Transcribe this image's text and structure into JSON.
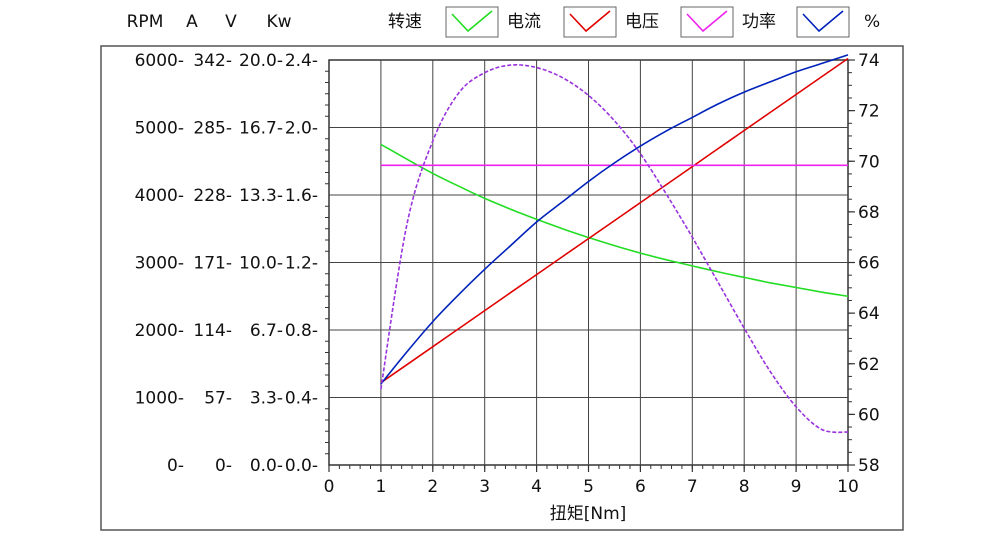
{
  "chart_data": {
    "type": "line",
    "xlabel": "扭矩[Nm]",
    "x_range": [
      0,
      10
    ],
    "x_ticks": [
      0,
      1,
      2,
      3,
      4,
      5,
      6,
      7,
      8,
      9,
      10
    ],
    "x": [
      1,
      1.5,
      2,
      2.5,
      3,
      3.5,
      4,
      4.5,
      5,
      5.5,
      6,
      6.5,
      7,
      7.5,
      8,
      8.5,
      9,
      9.5,
      10
    ],
    "left_axes": [
      {
        "unit": "RPM",
        "range": [
          0,
          6000
        ],
        "ticks": [
          "0-",
          "1000-",
          "2000-",
          "3000-",
          "4000-",
          "5000-",
          "6000-"
        ]
      },
      {
        "unit": "A",
        "range": [
          0,
          342
        ],
        "ticks": [
          "0-",
          "57-",
          "114-",
          "171-",
          "228-",
          "285-",
          "342-"
        ]
      },
      {
        "unit": "V",
        "range": [
          0,
          20
        ],
        "ticks": [
          "0.0-",
          "3.3-",
          "6.7-",
          "10.0-",
          "13.3-",
          "16.7-",
          "20.0-"
        ]
      },
      {
        "unit": "Kw",
        "range": [
          0,
          2.4
        ],
        "ticks": [
          "0.0-",
          "0.4-",
          "0.8-",
          "1.2-",
          "1.6-",
          "2.0-",
          "2.4-"
        ]
      }
    ],
    "right_axis": {
      "range": [
        58,
        74
      ],
      "ticks": [
        "58",
        "60",
        "62",
        "64",
        "66",
        "68",
        "70",
        "72",
        "74"
      ]
    },
    "percent_label": "%",
    "series": [
      {
        "name": "转速",
        "color": "#22dd22",
        "axis": 0,
        "values": [
          4750,
          4530,
          4320,
          4130,
          3950,
          3790,
          3640,
          3500,
          3370,
          3250,
          3140,
          3040,
          2950,
          2860,
          2780,
          2700,
          2630,
          2560,
          2500
        ]
      },
      {
        "name": "电流",
        "color": "#e00000",
        "axis": 1,
        "values": [
          69.5,
          84.7,
          99.9,
          115.2,
          130.4,
          145.6,
          160.8,
          176.0,
          191.2,
          206.4,
          221.6,
          236.8,
          252.0,
          267.3,
          282.5,
          297.7,
          312.9,
          328.1,
          343.3
        ]
      },
      {
        "name": "电压",
        "color": "#ee22ee",
        "axis": 2,
        "values": [
          14.8,
          14.8,
          14.8,
          14.8,
          14.8,
          14.8,
          14.8,
          14.8,
          14.8,
          14.8,
          14.8,
          14.8,
          14.8,
          14.8,
          14.8,
          14.8,
          14.8,
          14.8,
          14.8
        ]
      },
      {
        "name": "功率",
        "color": "#0022bb",
        "axis": 3,
        "values": [
          0.48,
          0.67,
          0.85,
          1.01,
          1.16,
          1.3,
          1.44,
          1.56,
          1.68,
          1.79,
          1.89,
          1.98,
          2.06,
          2.14,
          2.21,
          2.27,
          2.33,
          2.38,
          2.43
        ]
      },
      {
        "name": "%",
        "color": "#9933dd",
        "axis": "right",
        "dashed": true,
        "values": [
          61.0,
          67.5,
          70.8,
          72.7,
          73.5,
          73.8,
          73.7,
          73.3,
          72.6,
          71.6,
          70.3,
          68.7,
          67.0,
          65.2,
          63.4,
          61.7,
          60.3,
          59.4,
          59.3
        ]
      }
    ]
  }
}
